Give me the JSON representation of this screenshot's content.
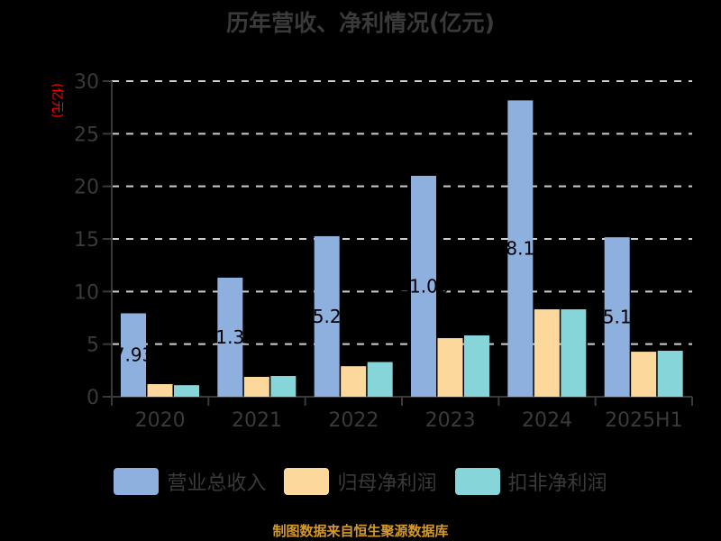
{
  "title": "历年营收、净利情况(亿元)",
  "y_unit_label": "(亿元)",
  "source_text": "制图数据来自恒生聚源数据库",
  "colors": {
    "background": "#000000",
    "revenue": "#8eb0de",
    "parent_net_profit": "#fdd89c",
    "deducted_net_profit": "#86d6d9",
    "gridline": "#d0d0d0",
    "axis": "#3a3a3a",
    "y_unit": "#ff0000",
    "source": "#d49a2a"
  },
  "legend": [
    {
      "label": "营业总收入",
      "color": "#8eb0de"
    },
    {
      "label": "归母净利润",
      "color": "#fdd89c"
    },
    {
      "label": "扣非净利润",
      "color": "#86d6d9"
    }
  ],
  "chart_data": {
    "type": "bar",
    "title": "历年营收、净利情况(亿元)",
    "xlabel": "",
    "ylabel": "(亿元)",
    "ylim": [
      0,
      30
    ],
    "yticks": [
      0,
      5,
      10,
      15,
      20,
      25,
      30
    ],
    "grid": true,
    "legend_position": "bottom",
    "categories": [
      "2020",
      "2021",
      "2022",
      "2023",
      "2024",
      "2025H1"
    ],
    "series": [
      {
        "name": "营业总收入",
        "values": [
          7.93,
          11.32,
          15.26,
          21.0,
          28.17,
          15.16
        ],
        "data_labels": [
          "7.93",
          "11.32",
          "15.26",
          "21.00",
          "28.17",
          "15.16"
        ]
      },
      {
        "name": "归母净利润",
        "values": [
          1.2,
          1.89,
          2.9,
          5.57,
          8.31,
          4.28
        ]
      },
      {
        "name": "扣非净利润",
        "values": [
          1.1,
          1.97,
          3.3,
          5.83,
          8.31,
          4.37
        ]
      }
    ]
  }
}
